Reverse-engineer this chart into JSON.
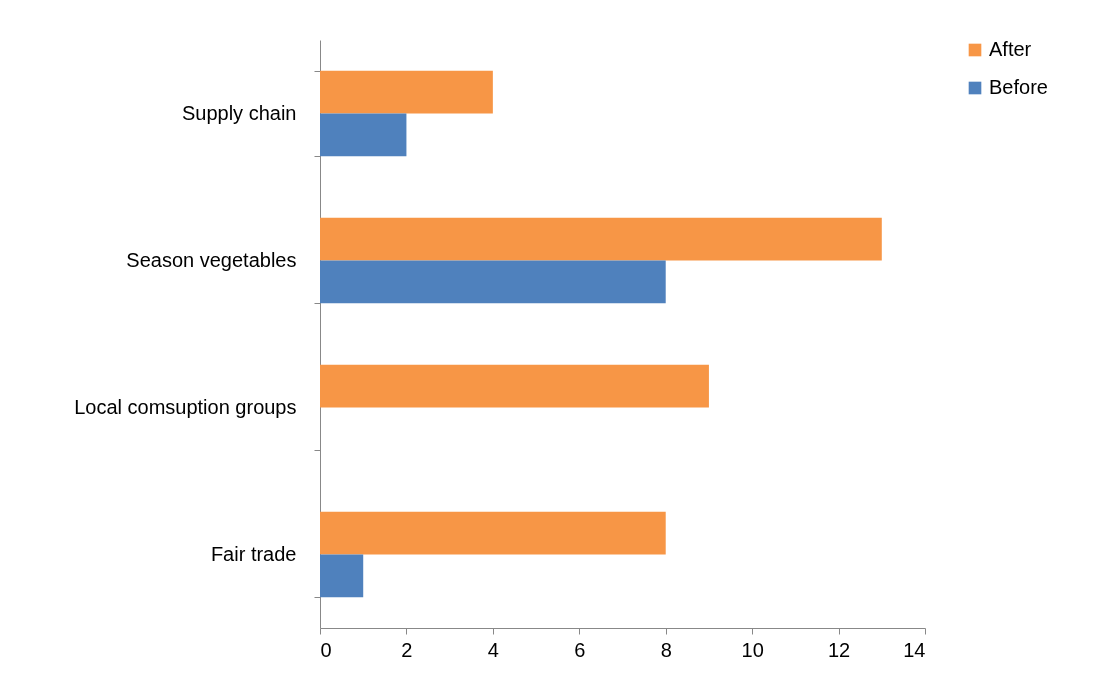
{
  "chart_data": {
    "type": "bar",
    "orientation": "horizontal",
    "categories": [
      "Supply chain",
      "Season vegetables",
      "Local comsuption groups",
      "Fair trade"
    ],
    "series": [
      {
        "name": "After",
        "color": "#f79646",
        "values": [
          4,
          13,
          9,
          8
        ]
      },
      {
        "name": "Before",
        "color": "#4f81bd",
        "values": [
          2,
          8,
          0,
          1
        ]
      }
    ],
    "xlim": [
      0,
      14
    ],
    "xticks": [
      0,
      2,
      4,
      6,
      8,
      10,
      12,
      14
    ],
    "grid": false,
    "legend": "right"
  }
}
